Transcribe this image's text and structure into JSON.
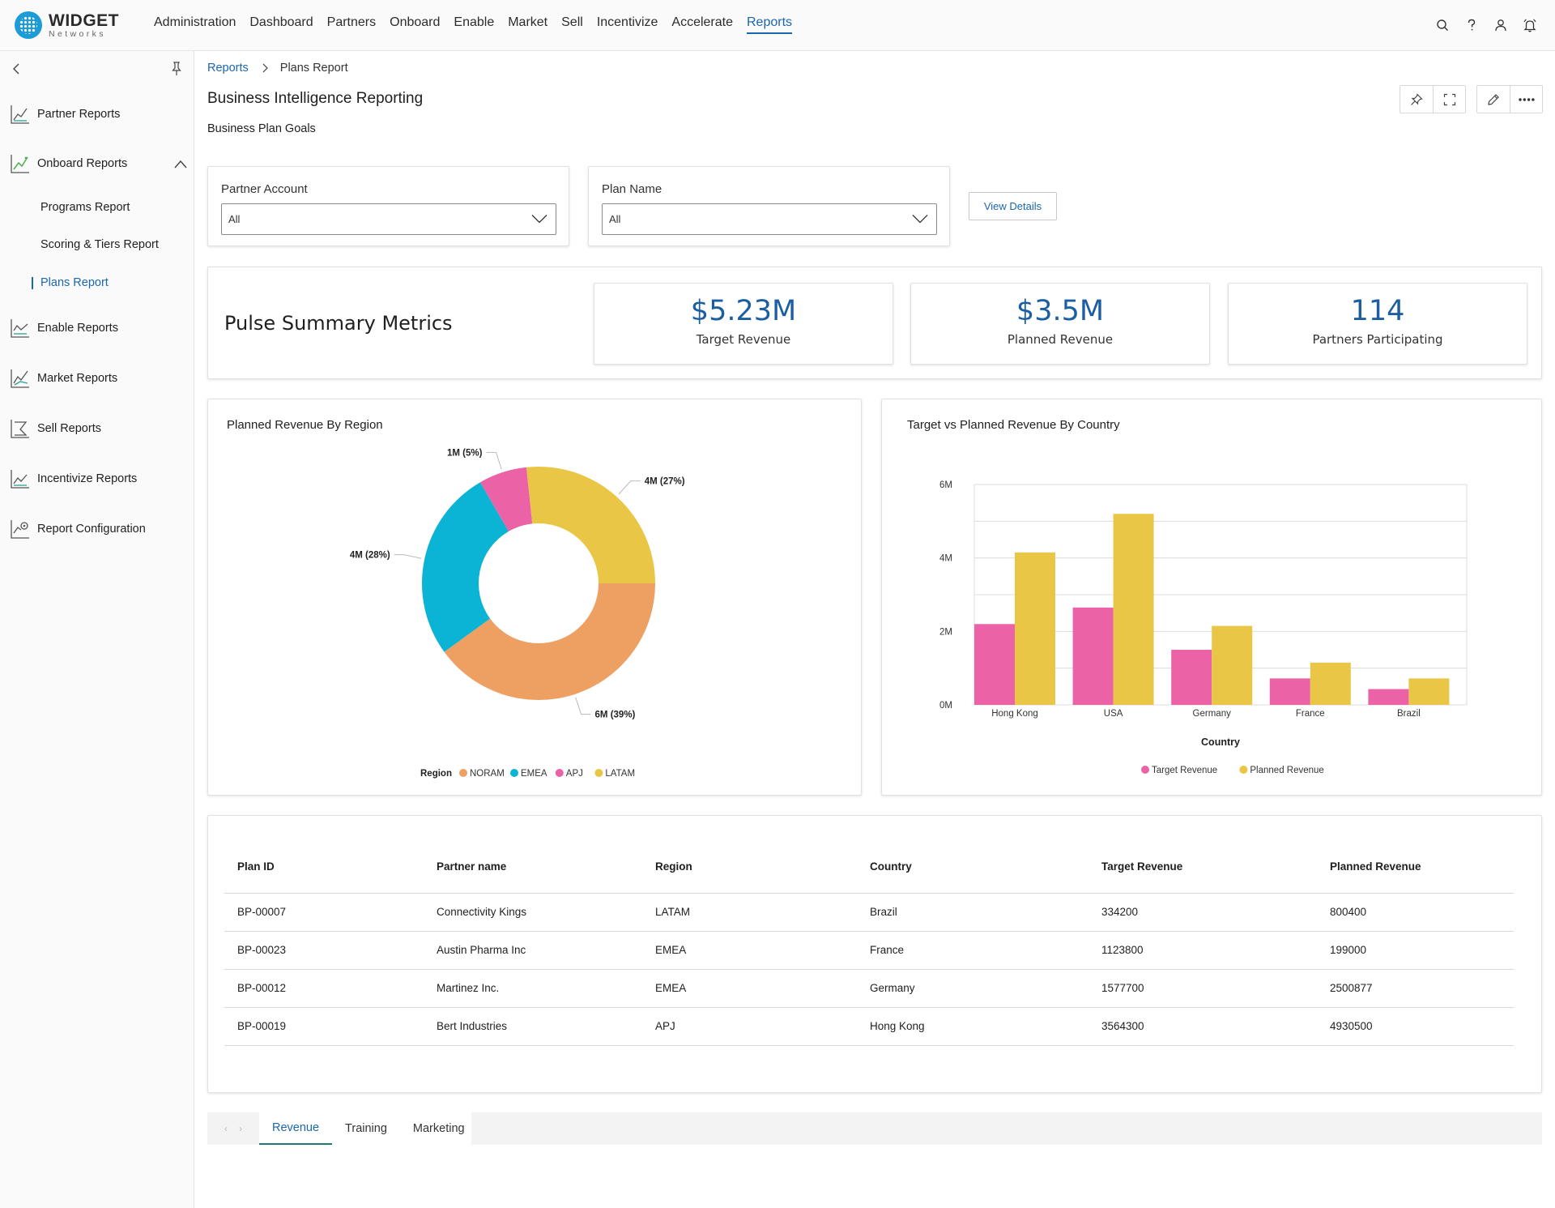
{
  "brand": {
    "title": "WIDGET",
    "subtitle": "Networks"
  },
  "topnav": {
    "items": [
      "Administration",
      "Dashboard",
      "Partners",
      "Onboard",
      "Enable",
      "Market",
      "Sell",
      "Incentivize",
      "Accelerate",
      "Reports"
    ],
    "active": "Reports",
    "icons": [
      "search-icon",
      "help-icon",
      "user-icon",
      "notification-bell-icon"
    ]
  },
  "sidebar": {
    "items": [
      {
        "label": "Partner Reports",
        "icon": "chart-line-icon"
      },
      {
        "label": "Onboard Reports",
        "icon": "chart-growth-icon",
        "expanded": true,
        "children": [
          "Programs Report",
          "Scoring & Tiers Report",
          "Plans Report"
        ],
        "active_child": "Plans Report"
      },
      {
        "label": "Enable Reports",
        "icon": "chart-line-icon"
      },
      {
        "label": "Market Reports",
        "icon": "chart-trend-icon"
      },
      {
        "label": "Sell Reports",
        "icon": "chart-funnel-icon"
      },
      {
        "label": "Incentivize Reports",
        "icon": "chart-line-icon"
      },
      {
        "label": "Report Configuration",
        "icon": "chart-settings-icon"
      }
    ]
  },
  "breadcrumb": {
    "root": "Reports",
    "current": "Plans Report"
  },
  "page": {
    "title": "Business Intelligence Reporting",
    "subtitle": "Business Plan Goals"
  },
  "filters": {
    "partner_account": {
      "label": "Partner Account",
      "value": "All"
    },
    "plan_name": {
      "label": "Plan Name",
      "value": "All"
    },
    "view_details": "View Details"
  },
  "pulse": {
    "title": "Pulse Summary Metrics",
    "metrics": [
      {
        "value": "$5.23M",
        "label": "Target Revenue"
      },
      {
        "value": "$3.5M",
        "label": "Planned Revenue"
      },
      {
        "value": "114",
        "label": "Partners Participating"
      }
    ]
  },
  "charts": {
    "donut_title": "Planned Revenue By Region",
    "bar_title": "Target vs Planned Revenue By Country"
  },
  "chart_data": [
    {
      "type": "pie",
      "title": "Planned Revenue By Region",
      "legend_title": "Region",
      "legend_position": "bottom",
      "slices": [
        {
          "name": "NORAM",
          "value": 6,
          "label": "6M (39%)",
          "color": "#ee9f62"
        },
        {
          "name": "EMEA",
          "value": 4,
          "label": "4M (28%)",
          "color": "#0bb3d4"
        },
        {
          "name": "APJ",
          "value": 1,
          "label": "1M (5%)",
          "color": "#eb62a7"
        },
        {
          "name": "LATAM",
          "value": 4,
          "label": "4M (27%)",
          "color": "#e9c646"
        }
      ]
    },
    {
      "type": "bar",
      "title": "Target vs Planned Revenue By Country",
      "xlabel": "Country",
      "ylabel": "",
      "categories": [
        "Hong Kong",
        "USA",
        "Germany",
        "France",
        "Brazil"
      ],
      "series": [
        {
          "name": "Target Revenue",
          "color": "#eb62a7",
          "values": [
            2.2,
            2.65,
            1.5,
            0.72,
            0.43
          ]
        },
        {
          "name": "Planned Revenue",
          "color": "#e9c646",
          "values": [
            4.15,
            5.2,
            2.15,
            1.15,
            0.72
          ]
        }
      ],
      "yticks": [
        "0M",
        "2M",
        "4M",
        "6M"
      ],
      "ylim": [
        0,
        6
      ],
      "grid": true,
      "legend_position": "bottom"
    }
  ],
  "table": {
    "columns": [
      "Plan ID",
      "Partner name",
      "Region",
      "Country",
      "Target Revenue",
      "Planned Revenue"
    ],
    "rows": [
      [
        "BP-00007",
        "Connectivity Kings",
        "LATAM",
        "Brazil",
        "334200",
        "800400"
      ],
      [
        "BP-00023",
        "Austin Pharma Inc",
        "EMEA",
        "France",
        "1123800",
        "199000"
      ],
      [
        "BP-00012",
        "Martinez Inc.",
        "EMEA",
        "Germany",
        "1577700",
        "2500877"
      ],
      [
        "BP-00019",
        "Bert Industries",
        "APJ",
        "Hong Kong",
        "3564300",
        "4930500"
      ]
    ]
  },
  "tabs": {
    "items": [
      "Revenue",
      "Training",
      "Marketing"
    ],
    "active": "Revenue"
  }
}
